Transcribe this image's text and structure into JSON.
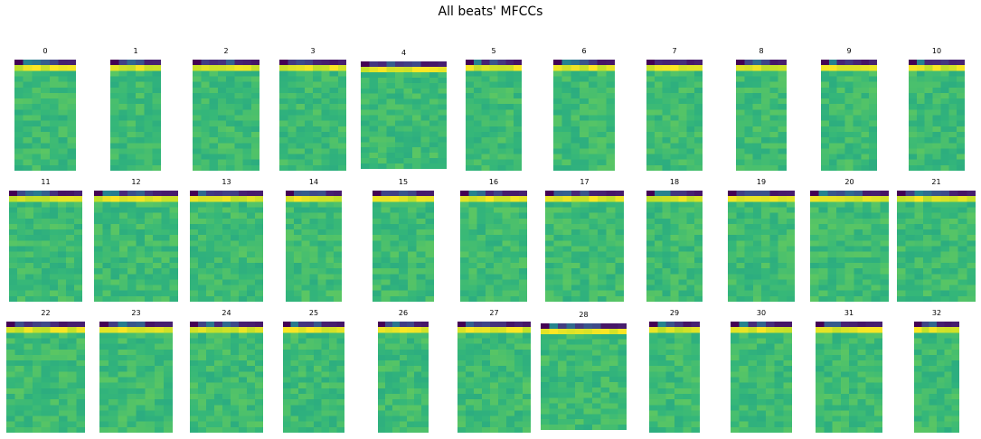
{
  "title": "All beats' MFCCs",
  "chart_data": {
    "type": "heatmap",
    "title": "All beats' MFCCs",
    "colormap": "viridis",
    "n_coefficients": 20,
    "panels": [
      {
        "label": "0",
        "frames": 7
      },
      {
        "label": "1",
        "frames": 6
      },
      {
        "label": "2",
        "frames": 8
      },
      {
        "label": "3",
        "frames": 8
      },
      {
        "label": "4",
        "frames": 10
      },
      {
        "label": "5",
        "frames": 7
      },
      {
        "label": "6",
        "frames": 7
      },
      {
        "label": "7",
        "frames": 7
      },
      {
        "label": "8",
        "frames": 6
      },
      {
        "label": "9",
        "frames": 7
      },
      {
        "label": "10",
        "frames": 7
      },
      {
        "label": "11",
        "frames": 9
      },
      {
        "label": "12",
        "frames": 10
      },
      {
        "label": "13",
        "frames": 9
      },
      {
        "label": "14",
        "frames": 7
      },
      {
        "label": "15",
        "frames": 7
      },
      {
        "label": "16",
        "frames": 8
      },
      {
        "label": "17",
        "frames": 9
      },
      {
        "label": "18",
        "frames": 7
      },
      {
        "label": "19",
        "frames": 8
      },
      {
        "label": "20",
        "frames": 9
      },
      {
        "label": "21",
        "frames": 9
      },
      {
        "label": "22",
        "frames": 9
      },
      {
        "label": "23",
        "frames": 8
      },
      {
        "label": "24",
        "frames": 9
      },
      {
        "label": "25",
        "frames": 8
      },
      {
        "label": "26",
        "frames": 7
      },
      {
        "label": "27",
        "frames": 9
      },
      {
        "label": "28",
        "frames": 10
      },
      {
        "label": "29",
        "frames": 6
      },
      {
        "label": "30",
        "frames": 7
      },
      {
        "label": "31",
        "frames": 8
      },
      {
        "label": "32",
        "frames": 6
      }
    ]
  }
}
